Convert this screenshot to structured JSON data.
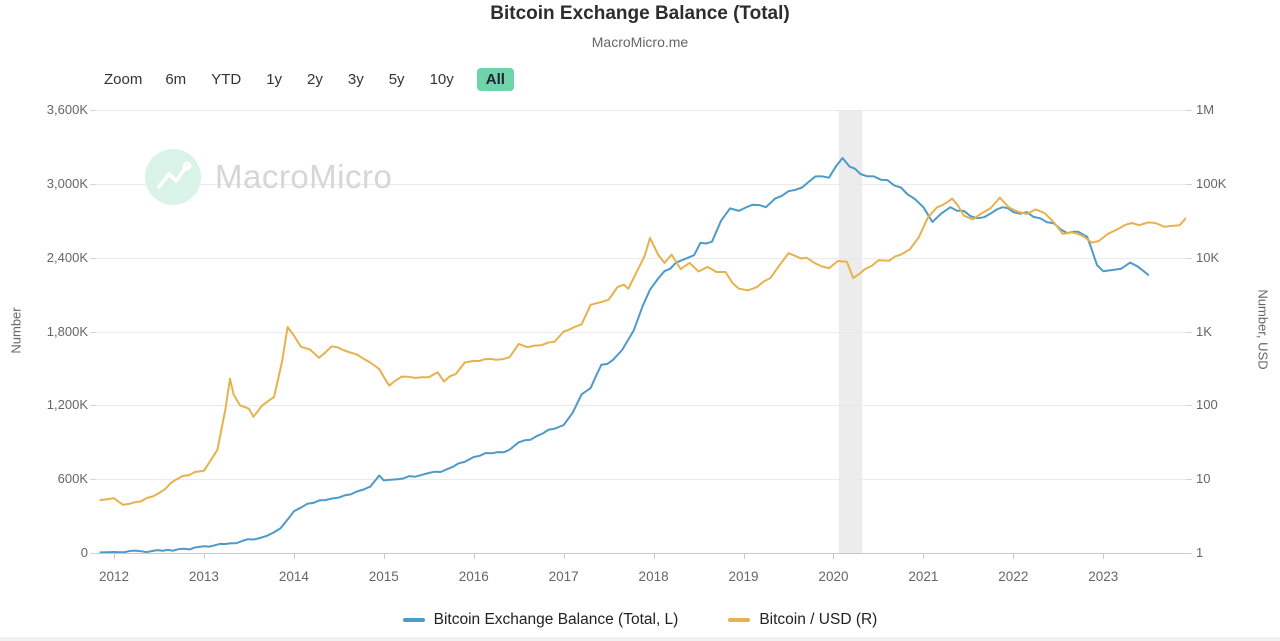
{
  "header": {
    "title": "Bitcoin Exchange Balance (Total)",
    "subtitle": "MacroMicro.me"
  },
  "toolbar": {
    "zoom_label": "Zoom",
    "ranges": [
      "6m",
      "YTD",
      "1y",
      "2y",
      "3y",
      "5y",
      "10y",
      "All"
    ],
    "active_range": "All",
    "active_bg_color": "#6fd3ab"
  },
  "watermark": {
    "text": "MacroMicro",
    "icon": "macromicro-logo-icon",
    "circle_color": "#d9f3e9"
  },
  "axes": {
    "left": {
      "label": "Number",
      "ticks": [
        "3,600K",
        "3,000K",
        "2,400K",
        "1,800K",
        "1,200K",
        "600K",
        "0"
      ]
    },
    "right": {
      "label": "Number, USD",
      "ticks": [
        "1M",
        "100K",
        "10K",
        "1K",
        "100",
        "10",
        "1"
      ]
    }
  },
  "legend": [
    {
      "label": "Bitcoin Exchange Balance (Total, L)",
      "color": "#4e9ac9"
    },
    {
      "label": "Bitcoin / USD (R)",
      "color": "#e7b24e"
    }
  ],
  "chart_data": {
    "type": "line",
    "title": "Bitcoin Exchange Balance (Total)",
    "source": "MacroMicro.me",
    "x_range": [
      2011.8,
      2023.92
    ],
    "x_ticks": [
      2012,
      2013,
      2014,
      2015,
      2016,
      2017,
      2018,
      2019,
      2020,
      2021,
      2022,
      2023
    ],
    "left_axis": {
      "label": "Number",
      "scale": "linear",
      "range": [
        0,
        3600
      ],
      "unit": "thousand BTC",
      "tick_step": 600
    },
    "right_axis": {
      "label": "Number, USD",
      "scale": "log",
      "range": [
        1,
        1000000
      ]
    },
    "highlight_band": {
      "x0": 2020.06,
      "x1": 2020.32,
      "color": "#e7e7e7"
    },
    "grid": true,
    "legend_position": "bottom",
    "series": [
      {
        "name": "Bitcoin Exchange Balance (Total, L)",
        "axis": "left",
        "color": "#4e9ac9",
        "unit": "thousand BTC",
        "points": [
          [
            2011.85,
            5
          ],
          [
            2012.0,
            8
          ],
          [
            2012.3,
            15
          ],
          [
            2012.6,
            25
          ],
          [
            2012.9,
            45
          ],
          [
            2013.0,
            55
          ],
          [
            2013.3,
            80
          ],
          [
            2013.55,
            110
          ],
          [
            2013.7,
            140
          ],
          [
            2013.85,
            200
          ],
          [
            2013.95,
            290
          ],
          [
            2014.0,
            340
          ],
          [
            2014.15,
            400
          ],
          [
            2014.35,
            430
          ],
          [
            2014.5,
            450
          ],
          [
            2014.7,
            500
          ],
          [
            2014.85,
            540
          ],
          [
            2014.95,
            630
          ],
          [
            2015.0,
            590
          ],
          [
            2015.15,
            600
          ],
          [
            2015.35,
            620
          ],
          [
            2015.5,
            650
          ],
          [
            2015.7,
            680
          ],
          [
            2015.9,
            740
          ],
          [
            2016.0,
            780
          ],
          [
            2016.2,
            810
          ],
          [
            2016.4,
            840
          ],
          [
            2016.5,
            900
          ],
          [
            2016.7,
            950
          ],
          [
            2016.9,
            1010
          ],
          [
            2017.0,
            1040
          ],
          [
            2017.1,
            1140
          ],
          [
            2017.2,
            1290
          ],
          [
            2017.3,
            1340
          ],
          [
            2017.42,
            1530
          ],
          [
            2017.55,
            1570
          ],
          [
            2017.65,
            1650
          ],
          [
            2017.78,
            1810
          ],
          [
            2017.88,
            2010
          ],
          [
            2017.96,
            2140
          ],
          [
            2018.05,
            2230
          ],
          [
            2018.12,
            2290
          ],
          [
            2018.25,
            2360
          ],
          [
            2018.35,
            2390
          ],
          [
            2018.45,
            2420
          ],
          [
            2018.52,
            2520
          ],
          [
            2018.65,
            2530
          ],
          [
            2018.75,
            2700
          ],
          [
            2018.85,
            2800
          ],
          [
            2018.95,
            2780
          ],
          [
            2019.1,
            2830
          ],
          [
            2019.25,
            2810
          ],
          [
            2019.35,
            2880
          ],
          [
            2019.5,
            2940
          ],
          [
            2019.65,
            2970
          ],
          [
            2019.8,
            3060
          ],
          [
            2019.95,
            3050
          ],
          [
            2020.1,
            3210
          ],
          [
            2020.18,
            3140
          ],
          [
            2020.3,
            3080
          ],
          [
            2020.45,
            3060
          ],
          [
            2020.6,
            3030
          ],
          [
            2020.75,
            2970
          ],
          [
            2020.9,
            2880
          ],
          [
            2021.0,
            2810
          ],
          [
            2021.1,
            2690
          ],
          [
            2021.2,
            2760
          ],
          [
            2021.3,
            2810
          ],
          [
            2021.45,
            2780
          ],
          [
            2021.6,
            2720
          ],
          [
            2021.75,
            2760
          ],
          [
            2021.88,
            2810
          ],
          [
            2022.0,
            2770
          ],
          [
            2022.15,
            2770
          ],
          [
            2022.3,
            2720
          ],
          [
            2022.45,
            2680
          ],
          [
            2022.6,
            2600
          ],
          [
            2022.72,
            2610
          ],
          [
            2022.82,
            2570
          ],
          [
            2022.87,
            2470
          ],
          [
            2022.93,
            2340
          ],
          [
            2023.0,
            2290
          ],
          [
            2023.1,
            2300
          ],
          [
            2023.2,
            2310
          ],
          [
            2023.3,
            2360
          ],
          [
            2023.38,
            2330
          ],
          [
            2023.45,
            2290
          ],
          [
            2023.5,
            2260
          ]
        ]
      },
      {
        "name": "Bitcoin / USD (R)",
        "axis": "right",
        "color": "#e7b24e",
        "unit": "USD",
        "points": [
          [
            2011.85,
            5.2
          ],
          [
            2012.0,
            5.5
          ],
          [
            2012.1,
            4.5
          ],
          [
            2012.3,
            5
          ],
          [
            2012.5,
            6.5
          ],
          [
            2012.7,
            10
          ],
          [
            2012.9,
            12.5
          ],
          [
            2013.0,
            13
          ],
          [
            2013.15,
            25
          ],
          [
            2013.24,
            90
          ],
          [
            2013.29,
            230
          ],
          [
            2013.33,
            140
          ],
          [
            2013.4,
            100
          ],
          [
            2013.5,
            90
          ],
          [
            2013.55,
            70
          ],
          [
            2013.65,
            100
          ],
          [
            2013.78,
            130
          ],
          [
            2013.87,
            400
          ],
          [
            2013.93,
            1150
          ],
          [
            2014.0,
            880
          ],
          [
            2014.08,
            620
          ],
          [
            2014.18,
            570
          ],
          [
            2014.28,
            440
          ],
          [
            2014.42,
            630
          ],
          [
            2014.55,
            560
          ],
          [
            2014.7,
            490
          ],
          [
            2014.85,
            380
          ],
          [
            2014.95,
            310
          ],
          [
            2015.02,
            220
          ],
          [
            2015.06,
            185
          ],
          [
            2015.2,
            245
          ],
          [
            2015.35,
            235
          ],
          [
            2015.5,
            240
          ],
          [
            2015.6,
            280
          ],
          [
            2015.67,
            210
          ],
          [
            2015.8,
            265
          ],
          [
            2015.9,
            380
          ],
          [
            2016.0,
            400
          ],
          [
            2016.12,
            420
          ],
          [
            2016.25,
            415
          ],
          [
            2016.4,
            450
          ],
          [
            2016.5,
            680
          ],
          [
            2016.6,
            610
          ],
          [
            2016.75,
            650
          ],
          [
            2016.9,
            730
          ],
          [
            2017.0,
            1000
          ],
          [
            2017.12,
            1150
          ],
          [
            2017.2,
            1250
          ],
          [
            2017.3,
            2300
          ],
          [
            2017.42,
            2500
          ],
          [
            2017.5,
            2700
          ],
          [
            2017.6,
            4000
          ],
          [
            2017.67,
            4300
          ],
          [
            2017.72,
            3800
          ],
          [
            2017.8,
            6000
          ],
          [
            2017.9,
            10500
          ],
          [
            2017.96,
            18500
          ],
          [
            2018.05,
            11000
          ],
          [
            2018.12,
            8500
          ],
          [
            2018.2,
            11000
          ],
          [
            2018.3,
            7000
          ],
          [
            2018.4,
            8500
          ],
          [
            2018.5,
            6500
          ],
          [
            2018.6,
            7500
          ],
          [
            2018.7,
            6400
          ],
          [
            2018.8,
            6400
          ],
          [
            2018.88,
            4500
          ],
          [
            2018.95,
            3800
          ],
          [
            2019.05,
            3600
          ],
          [
            2019.15,
            4000
          ],
          [
            2019.3,
            5300
          ],
          [
            2019.42,
            8500
          ],
          [
            2019.5,
            11500
          ],
          [
            2019.58,
            10500
          ],
          [
            2019.7,
            10000
          ],
          [
            2019.8,
            8300
          ],
          [
            2019.95,
            7200
          ],
          [
            2020.05,
            9000
          ],
          [
            2020.15,
            8800
          ],
          [
            2020.22,
            5300
          ],
          [
            2020.35,
            7000
          ],
          [
            2020.5,
            9200
          ],
          [
            2020.62,
            9100
          ],
          [
            2020.75,
            11000
          ],
          [
            2020.85,
            13000
          ],
          [
            2020.95,
            19000
          ],
          [
            2021.05,
            35000
          ],
          [
            2021.15,
            48000
          ],
          [
            2021.28,
            58000
          ],
          [
            2021.32,
            63000
          ],
          [
            2021.45,
            37000
          ],
          [
            2021.55,
            33000
          ],
          [
            2021.65,
            40000
          ],
          [
            2021.75,
            47000
          ],
          [
            2021.85,
            65000
          ],
          [
            2021.95,
            48000
          ],
          [
            2022.05,
            42000
          ],
          [
            2022.15,
            39000
          ],
          [
            2022.25,
            45000
          ],
          [
            2022.35,
            40000
          ],
          [
            2022.45,
            30000
          ],
          [
            2022.55,
            21000
          ],
          [
            2022.65,
            22000
          ],
          [
            2022.78,
            19500
          ],
          [
            2022.87,
            16000
          ],
          [
            2022.95,
            16800
          ],
          [
            2023.05,
            21000
          ],
          [
            2023.15,
            24000
          ],
          [
            2023.25,
            28000
          ],
          [
            2023.32,
            29500
          ],
          [
            2023.4,
            27500
          ],
          [
            2023.5,
            30000
          ],
          [
            2023.58,
            29500
          ],
          [
            2023.68,
            26200
          ],
          [
            2023.78,
            27000
          ],
          [
            2023.85,
            27500
          ],
          [
            2023.92,
            34500
          ]
        ]
      }
    ]
  }
}
